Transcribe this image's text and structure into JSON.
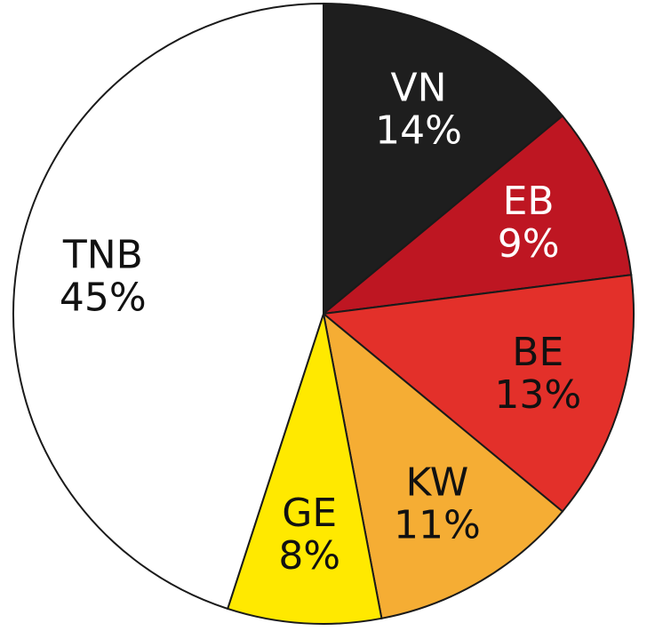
{
  "chart_data": {
    "type": "pie",
    "categories": [
      "VN",
      "EB",
      "BE",
      "KW",
      "GE",
      "TNB"
    ],
    "values": [
      14,
      9,
      13,
      11,
      8,
      45
    ],
    "value_labels": [
      "14%",
      "9%",
      "13%",
      "11%",
      "8%",
      "45%"
    ],
    "colors": [
      "#1e1e1e",
      "#be1622",
      "#e3302a",
      "#f5ad34",
      "#ffe900",
      "#ffffff"
    ]
  }
}
